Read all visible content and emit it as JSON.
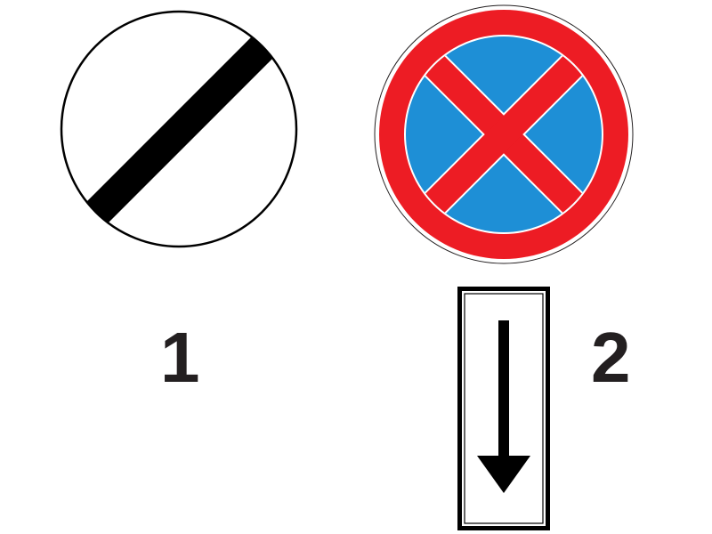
{
  "signs": [
    {
      "id": "sign-1",
      "number": "1",
      "symbol": "end-of-all-restrictions-sign",
      "colors": {
        "background": "#ffffff",
        "border": "#000000",
        "stripe": "#000000"
      }
    },
    {
      "id": "sign-2",
      "number": "2",
      "symbol": "no-stopping-sign",
      "colors": {
        "field": "#1e8fd6",
        "ring": "#ed1c24",
        "cross": "#ed1c24",
        "rim": "#ffffff"
      },
      "plate": {
        "symbol": "arrow-down-plate",
        "colors": {
          "background": "#ffffff",
          "border": "#000000",
          "arrow": "#000000"
        }
      }
    }
  ]
}
